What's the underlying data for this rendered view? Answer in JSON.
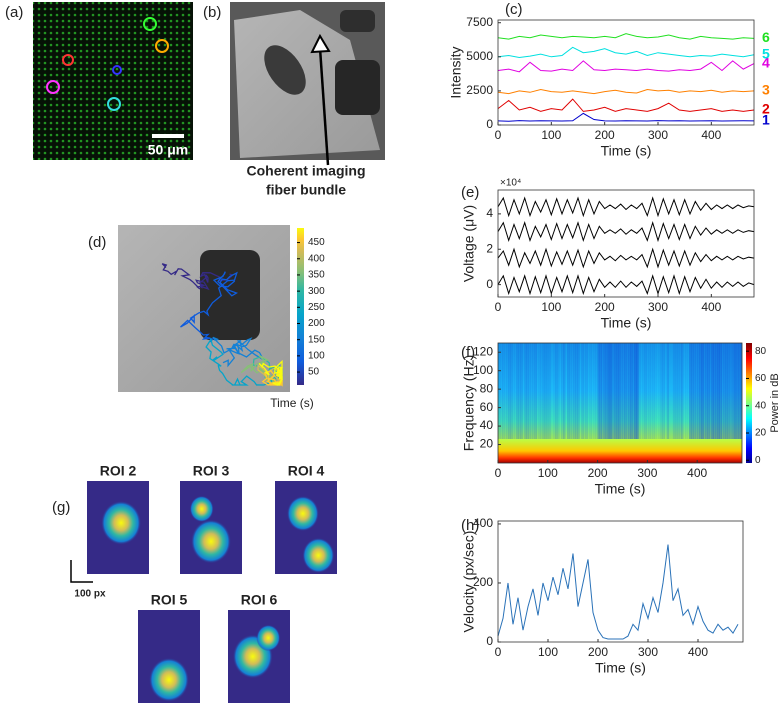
{
  "images": {
    "a": {
      "label": "(a)",
      "scale_bar": "50 μm"
    },
    "b": {
      "label": "(b)",
      "annotation": [
        "Coherent imaging",
        "fiber bundle"
      ]
    },
    "d": {
      "label": "(d)",
      "colorbar": {
        "clim": [
          10,
          495
        ],
        "ticks": [
          50,
          100,
          150,
          200,
          250,
          300,
          350,
          400,
          450
        ],
        "label": "Time (s)"
      }
    },
    "g": {
      "label": "(g)",
      "rois": [
        "ROI 2",
        "ROI 3",
        "ROI 4",
        "ROI 5",
        "ROI 6"
      ],
      "scale_bar": "100 px"
    }
  },
  "chart_data": [
    {
      "type": "line",
      "panel_label": "(c)",
      "x_label": "Time (s)",
      "y_label": "Intensity",
      "xlim": [
        0,
        480
      ],
      "ylim": [
        0,
        7700
      ],
      "xticks": [
        0,
        100,
        200,
        300,
        400
      ],
      "yticks": [
        0,
        2500,
        5000,
        7500
      ],
      "x": [
        0,
        20,
        40,
        60,
        80,
        100,
        120,
        140,
        160,
        180,
        200,
        220,
        240,
        260,
        280,
        300,
        320,
        340,
        360,
        380,
        400,
        420,
        440,
        460,
        480
      ],
      "series": [
        {
          "name": "1",
          "color": "#0000cc",
          "values": [
            300,
            280,
            320,
            290,
            310,
            300,
            290,
            310,
            850,
            400,
            300,
            290,
            310,
            300,
            290,
            320,
            300,
            310,
            290,
            300,
            310,
            290,
            300,
            310,
            300
          ]
        },
        {
          "name": "2",
          "color": "#e00000",
          "values": [
            1200,
            1800,
            1100,
            1300,
            1000,
            1200,
            1100,
            1900,
            1000,
            1100,
            1300,
            1000,
            1200,
            1100,
            1000,
            1200,
            1600,
            1100,
            1000,
            1100,
            1200,
            1000,
            1100,
            1000,
            1100
          ]
        },
        {
          "name": "3",
          "color": "#ff8000",
          "values": [
            2400,
            2300,
            2500,
            2400,
            2600,
            2450,
            2400,
            2500,
            2400,
            2300,
            2450,
            2550,
            2400,
            2350,
            2600,
            2500,
            2550,
            2400,
            2500,
            2450,
            2550,
            2400,
            2500,
            2450,
            2500
          ]
        },
        {
          "name": "4",
          "color": "#e000e0",
          "values": [
            4000,
            4100,
            3900,
            4600,
            4000,
            3950,
            4100,
            4000,
            4700,
            4050,
            4000,
            4100,
            4050,
            4000,
            4100,
            4000,
            3950,
            4050,
            4000,
            4100,
            4600,
            4000,
            4700,
            4100,
            4500
          ]
        },
        {
          "name": "5",
          "color": "#00e0e0",
          "values": [
            5000,
            5100,
            4950,
            5050,
            5200,
            5000,
            5100,
            5700,
            5300,
            5400,
            5600,
            5300,
            5200,
            5400,
            5100,
            5300,
            5200,
            5100,
            5000,
            5100,
            5050,
            5200,
            5100,
            5000,
            5150
          ]
        },
        {
          "name": "6",
          "color": "#20e020",
          "values": [
            6400,
            6300,
            6500,
            6400,
            6600,
            6500,
            6400,
            6500,
            6450,
            6400,
            6500,
            6400,
            6700,
            6500,
            6400,
            6450,
            6600,
            6400,
            6300,
            6500,
            6400,
            6350,
            6300,
            6400,
            6350
          ]
        }
      ]
    },
    {
      "type": "line",
      "panel_label": "(e)",
      "x_label": "Time (s)",
      "y_label": "Voltage (μV)",
      "y_multiplier": "×10⁴",
      "xlim": [
        0,
        480
      ],
      "ylim": [
        -0.7,
        5.35
      ],
      "xticks": [
        0,
        100,
        200,
        300,
        400
      ],
      "yticks": [
        0,
        2,
        4
      ],
      "x": [
        0,
        10,
        20,
        30,
        40,
        50,
        60,
        70,
        80,
        90,
        100,
        110,
        120,
        130,
        140,
        150,
        160,
        170,
        180,
        190,
        200,
        210,
        220,
        230,
        240,
        250,
        260,
        270,
        280,
        290,
        300,
        310,
        320,
        330,
        340,
        350,
        360,
        370,
        380,
        390,
        400,
        410,
        420,
        430,
        440,
        450,
        460,
        470,
        480
      ],
      "series": [
        {
          "color": "#000000",
          "values": [
            4.4,
            4.9,
            3.9,
            4.8,
            4.0,
            4.9,
            3.9,
            4.7,
            4.1,
            4.8,
            3.95,
            4.85,
            4.0,
            4.8,
            4.05,
            4.9,
            3.9,
            4.8,
            4.0,
            4.7,
            4.3,
            4.5,
            4.3,
            4.55,
            4.25,
            4.5,
            4.3,
            4.6,
            3.9,
            4.9,
            3.9,
            4.85,
            4.0,
            4.8,
            3.95,
            4.8,
            4.0,
            4.7,
            4.2,
            4.6,
            4.25,
            4.5,
            4.3,
            4.5,
            4.3,
            4.5,
            4.35,
            4.45,
            4.4
          ]
        },
        {
          "color": "#000000",
          "values": [
            3.0,
            3.5,
            2.5,
            3.4,
            2.6,
            3.5,
            2.5,
            3.3,
            2.7,
            3.4,
            2.55,
            3.45,
            2.6,
            3.4,
            2.65,
            3.5,
            2.5,
            3.4,
            2.6,
            3.3,
            2.9,
            3.1,
            2.9,
            3.15,
            2.85,
            3.1,
            2.9,
            3.2,
            2.5,
            3.5,
            2.5,
            3.45,
            2.6,
            3.4,
            2.55,
            3.4,
            2.6,
            3.3,
            2.8,
            3.2,
            2.85,
            3.1,
            2.9,
            3.1,
            2.9,
            3.1,
            2.95,
            3.05,
            3.0
          ]
        },
        {
          "color": "#000000",
          "values": [
            1.5,
            1.9,
            1.1,
            2.0,
            1.0,
            1.8,
            1.2,
            1.9,
            1.1,
            2.0,
            1.05,
            1.85,
            1.15,
            1.9,
            1.1,
            1.95,
            1.0,
            1.9,
            1.2,
            1.8,
            1.4,
            1.6,
            1.35,
            1.65,
            1.4,
            1.6,
            1.4,
            1.7,
            1.0,
            2.0,
            1.0,
            1.95,
            1.1,
            1.9,
            1.05,
            1.9,
            1.1,
            1.8,
            1.3,
            1.7,
            1.35,
            1.6,
            1.4,
            1.6,
            1.4,
            1.6,
            1.45,
            1.55,
            1.5
          ]
        },
        {
          "color": "#000000",
          "values": [
            0,
            0.5,
            -0.5,
            0.4,
            -0.4,
            0.5,
            -0.5,
            0.45,
            -0.45,
            0.5,
            -0.5,
            0.4,
            -0.4,
            0.5,
            -0.45,
            0.5,
            -0.5,
            0.4,
            -0.4,
            0.3,
            -0.15,
            0.15,
            -0.15,
            0.2,
            -0.15,
            0.15,
            -0.1,
            0.2,
            -0.5,
            0.5,
            -0.5,
            0.45,
            -0.45,
            0.5,
            -0.5,
            0.45,
            -0.4,
            0.4,
            -0.2,
            0.3,
            -0.2,
            0.15,
            -0.15,
            0.15,
            -0.1,
            0.15,
            -0.1,
            0.1,
            0
          ]
        }
      ]
    },
    {
      "type": "spectrogram",
      "panel_label": "(f)",
      "x_label": "Time (s)",
      "y_label": "Frequency (Hz)",
      "xlim": [
        0,
        490
      ],
      "ylim": [
        0,
        130
      ],
      "xticks": [
        0,
        100,
        200,
        300,
        400
      ],
      "yticks": [
        20,
        40,
        60,
        80,
        100,
        120
      ],
      "colorbar_label": "Power in dB",
      "clim": [
        -2,
        86
      ],
      "cticks": [
        0,
        20,
        40,
        60,
        80
      ]
    },
    {
      "type": "line",
      "panel_label": "(h)",
      "x_label": "Time (s)",
      "y_label": "Velocity (px/sec)",
      "xlim": [
        0,
        490
      ],
      "ylim": [
        0,
        410
      ],
      "xticks": [
        0,
        100,
        200,
        300,
        400
      ],
      "yticks": [
        0,
        200,
        400
      ],
      "x": [
        0,
        10,
        20,
        30,
        40,
        50,
        60,
        70,
        80,
        90,
        100,
        110,
        120,
        130,
        140,
        150,
        160,
        170,
        180,
        190,
        200,
        210,
        220,
        230,
        240,
        250,
        260,
        270,
        280,
        290,
        300,
        310,
        320,
        330,
        340,
        350,
        360,
        370,
        380,
        390,
        400,
        410,
        420,
        430,
        440,
        450,
        460,
        470,
        480
      ],
      "series": [
        {
          "color": "#2a72b8",
          "values": [
            20,
            80,
            200,
            60,
            150,
            40,
            120,
            180,
            90,
            200,
            140,
            220,
            160,
            250,
            180,
            300,
            120,
            200,
            280,
            100,
            40,
            15,
            10,
            10,
            10,
            10,
            20,
            60,
            40,
            130,
            80,
            150,
            100,
            200,
            330,
            140,
            180,
            90,
            110,
            60,
            120,
            70,
            40,
            30,
            60,
            40,
            50,
            30,
            60
          ]
        }
      ]
    }
  ]
}
